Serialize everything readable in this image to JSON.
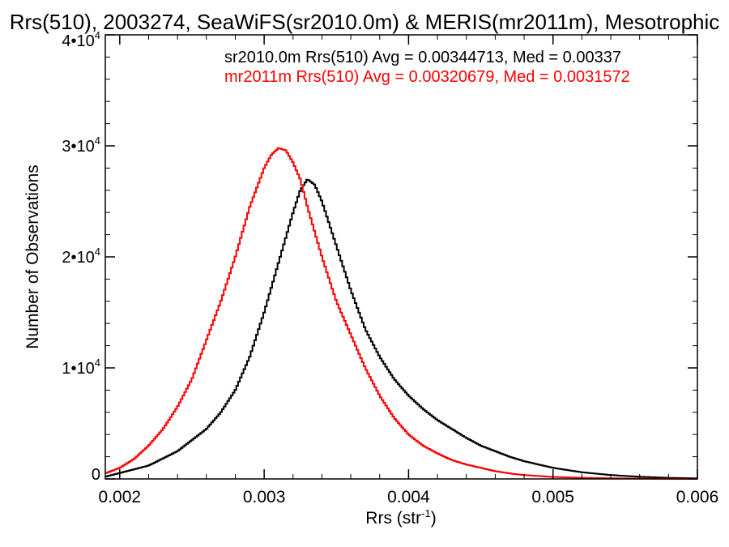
{
  "chart_data": {
    "type": "line",
    "title": "Rrs(510), 2003274, SeaWiFS(sr2010.0m) & MERIS(mr2011m), Mesotrophic",
    "xlabel": "Rrs (str",
    "xlabel_sup": "-1",
    "xlabel_end": ")",
    "ylabel": "Number of Observations",
    "xlim": [
      0.0019,
      0.006
    ],
    "ylim": [
      0,
      40000
    ],
    "x_ticks": [
      {
        "value": 0.002,
        "label": "0.002"
      },
      {
        "value": 0.003,
        "label": "0.003"
      },
      {
        "value": 0.004,
        "label": "0.004"
      },
      {
        "value": 0.005,
        "label": "0.005"
      },
      {
        "value": 0.006,
        "label": "0.006"
      }
    ],
    "y_ticks": [
      {
        "value": 0,
        "base": "0",
        "exp": ""
      },
      {
        "value": 10000,
        "base": "1•10",
        "exp": "4"
      },
      {
        "value": 20000,
        "base": "2•10",
        "exp": "4"
      },
      {
        "value": 30000,
        "base": "3•10",
        "exp": "4"
      },
      {
        "value": 40000,
        "base": "4•10",
        "exp": "4"
      }
    ],
    "grid": false,
    "legend_position": "top-right",
    "series": [
      {
        "name": "sr2010.0m",
        "label": "sr2010.0m Rrs(510) Avg = 0.00344713, Med = 0.00337",
        "color": "#000000",
        "x": [
          0.0019,
          0.0022,
          0.0024,
          0.0026,
          0.0027,
          0.0028,
          0.0029,
          0.003,
          0.0031,
          0.0032,
          0.00325,
          0.0033,
          0.00335,
          0.0034,
          0.0035,
          0.0036,
          0.0037,
          0.0038,
          0.0039,
          0.004,
          0.0041,
          0.0042,
          0.0043,
          0.0044,
          0.0045,
          0.0046,
          0.0047,
          0.0048,
          0.005,
          0.0052,
          0.0054,
          0.0056,
          0.0058,
          0.006
        ],
        "y": [
          200,
          1200,
          2500,
          4500,
          6000,
          8000,
          11000,
          15000,
          19500,
          24000,
          26000,
          27000,
          26500,
          25000,
          21000,
          17000,
          13500,
          11000,
          9000,
          7500,
          6300,
          5300,
          4500,
          3700,
          3000,
          2500,
          2000,
          1600,
          1000,
          600,
          350,
          200,
          100,
          50
        ]
      },
      {
        "name": "mr2011m",
        "label": "mr2011m Rrs(510) Avg = 0.00320679, Med = 0.0031572",
        "color": "#ff0000",
        "x": [
          0.0019,
          0.002,
          0.0021,
          0.0022,
          0.0023,
          0.0024,
          0.0025,
          0.0026,
          0.0027,
          0.0028,
          0.0029,
          0.003,
          0.00305,
          0.0031,
          0.00315,
          0.0032,
          0.00325,
          0.0033,
          0.0034,
          0.0035,
          0.0036,
          0.0037,
          0.0038,
          0.0039,
          0.004,
          0.0041,
          0.0042,
          0.0043,
          0.0044,
          0.0045,
          0.0046,
          0.0047,
          0.0048,
          0.005,
          0.0052,
          0.0054,
          0.0056,
          0.0058,
          0.006
        ],
        "y": [
          500,
          1000,
          1800,
          3000,
          4500,
          6500,
          9000,
          12500,
          16000,
          20000,
          24500,
          28000,
          29200,
          29800,
          29600,
          28500,
          27000,
          24500,
          20000,
          16000,
          13000,
          10000,
          7500,
          5500,
          4000,
          3000,
          2300,
          1700,
          1300,
          1000,
          700,
          500,
          350,
          180,
          100,
          60,
          30,
          15,
          5
        ]
      }
    ]
  }
}
